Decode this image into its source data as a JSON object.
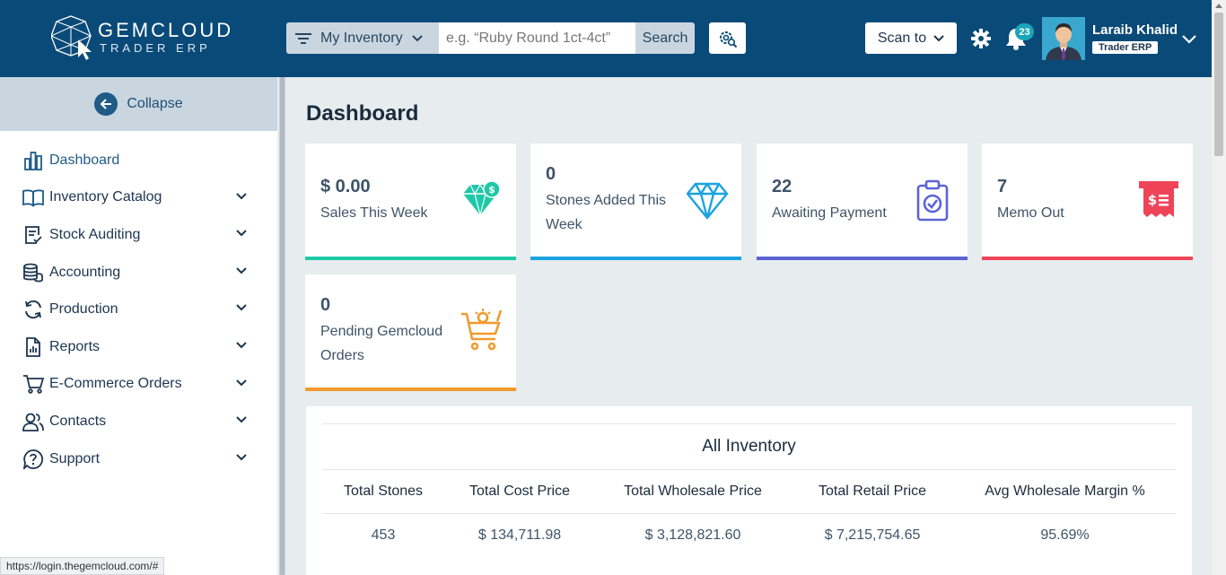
{
  "brand": {
    "name": "GEMCLOUD",
    "sub": "TRADER ERP"
  },
  "search": {
    "filter_label": "My Inventory",
    "placeholder": "e.g. “Ruby Round 1ct-4ct”",
    "button_label": "Search"
  },
  "header": {
    "scan_label": "Scan to",
    "notification_count": "23",
    "user_name": "Laraib Khalid",
    "user_role": "Trader ERP"
  },
  "sidebar": {
    "collapse_label": "Collapse",
    "items": [
      {
        "label": "Dashboard",
        "icon": "bar-chart-icon",
        "has_children": false
      },
      {
        "label": "Inventory Catalog",
        "icon": "book-icon",
        "has_children": true
      },
      {
        "label": "Stock Auditing",
        "icon": "clipboard-check-icon",
        "has_children": true
      },
      {
        "label": "Accounting",
        "icon": "coins-icon",
        "has_children": true
      },
      {
        "label": "Production",
        "icon": "refresh-icon",
        "has_children": true
      },
      {
        "label": "Reports",
        "icon": "report-icon",
        "has_children": true
      },
      {
        "label": "E-Commerce Orders",
        "icon": "cart-icon",
        "has_children": true
      },
      {
        "label": "Contacts",
        "icon": "users-icon",
        "has_children": true
      },
      {
        "label": "Support",
        "icon": "help-icon",
        "has_children": true
      }
    ]
  },
  "status_url": "https://login.thegemcloud.com/#",
  "main": {
    "title": "Dashboard",
    "cards": [
      {
        "value": "$ 0.00",
        "label": "Sales This Week",
        "icon": "diamond-dollar-icon",
        "color": "#1ec9a8"
      },
      {
        "value": "0",
        "label": "Stones Added This Week",
        "icon": "diamond-icon",
        "color": "#1aa3e0"
      },
      {
        "value": "22",
        "label": "Awaiting Payment",
        "icon": "clipboard-check-icon",
        "color": "#5c63d6"
      },
      {
        "value": "7",
        "label": "Memo Out",
        "icon": "receipt-dollar-icon",
        "color": "#ef4458"
      },
      {
        "value": "0",
        "label": "Pending Gemcloud Orders",
        "icon": "cart-gem-icon",
        "color": "#f29a2e"
      }
    ],
    "inventory": {
      "title": "All Inventory",
      "columns": [
        "Total Stones",
        "Total Cost Price",
        "Total Wholesale Price",
        "Total Retail Price",
        "Avg Wholesale Margin %"
      ],
      "row": [
        "453",
        "$ 134,711.98",
        "$ 3,128,821.60",
        "$ 7,215,754.65",
        "95.69%"
      ]
    }
  }
}
